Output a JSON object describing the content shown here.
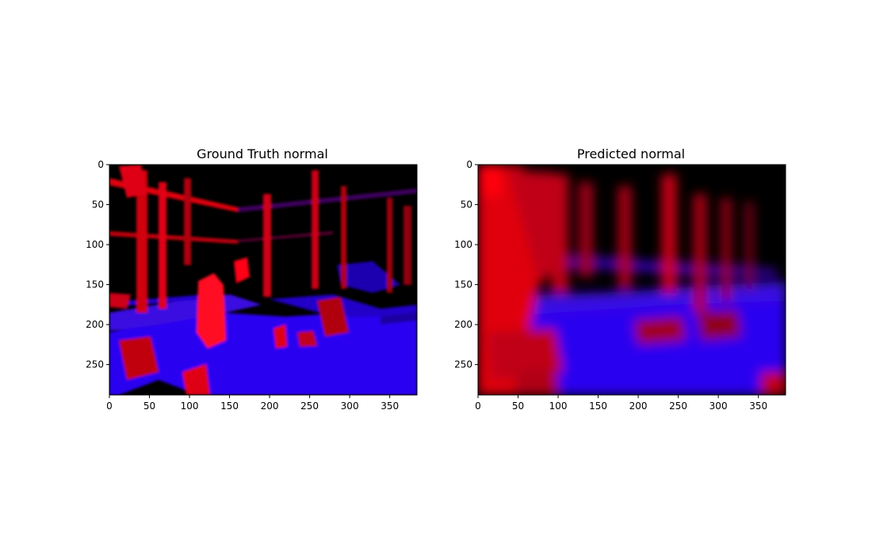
{
  "figure": {
    "background": "#ffffff",
    "axis_color": "#000000"
  },
  "chart_data": [
    {
      "type": "heatmap",
      "title": "Ground Truth normal",
      "xlabel": "",
      "ylabel": "",
      "xlim": [
        0,
        384
      ],
      "ylim": [
        288,
        0
      ],
      "xticks": [
        0,
        50,
        100,
        150,
        200,
        250,
        300,
        350
      ],
      "yticks": [
        0,
        50,
        100,
        150,
        200,
        250
      ],
      "image_content": "surface-normal map (RGB-encoded), sharp edges with black invalid regions",
      "colors": {
        "vertical_surfaces": "#e00010",
        "horizontal_surfaces": "#2a00f0",
        "invalid": "#000000"
      }
    },
    {
      "type": "heatmap",
      "title": "Predicted normal",
      "xlabel": "",
      "ylabel": "",
      "xlim": [
        0,
        384
      ],
      "ylim": [
        288,
        0
      ],
      "xticks": [
        0,
        50,
        100,
        150,
        200,
        250,
        300,
        350
      ],
      "yticks": [
        0,
        50,
        100,
        150,
        200,
        250
      ],
      "image_content": "surface-normal map (RGB-encoded), smooth blurry prediction",
      "colors": {
        "vertical_surfaces": "#e00010",
        "horizontal_surfaces": "#2a00f0",
        "invalid": "#000000"
      }
    }
  ]
}
